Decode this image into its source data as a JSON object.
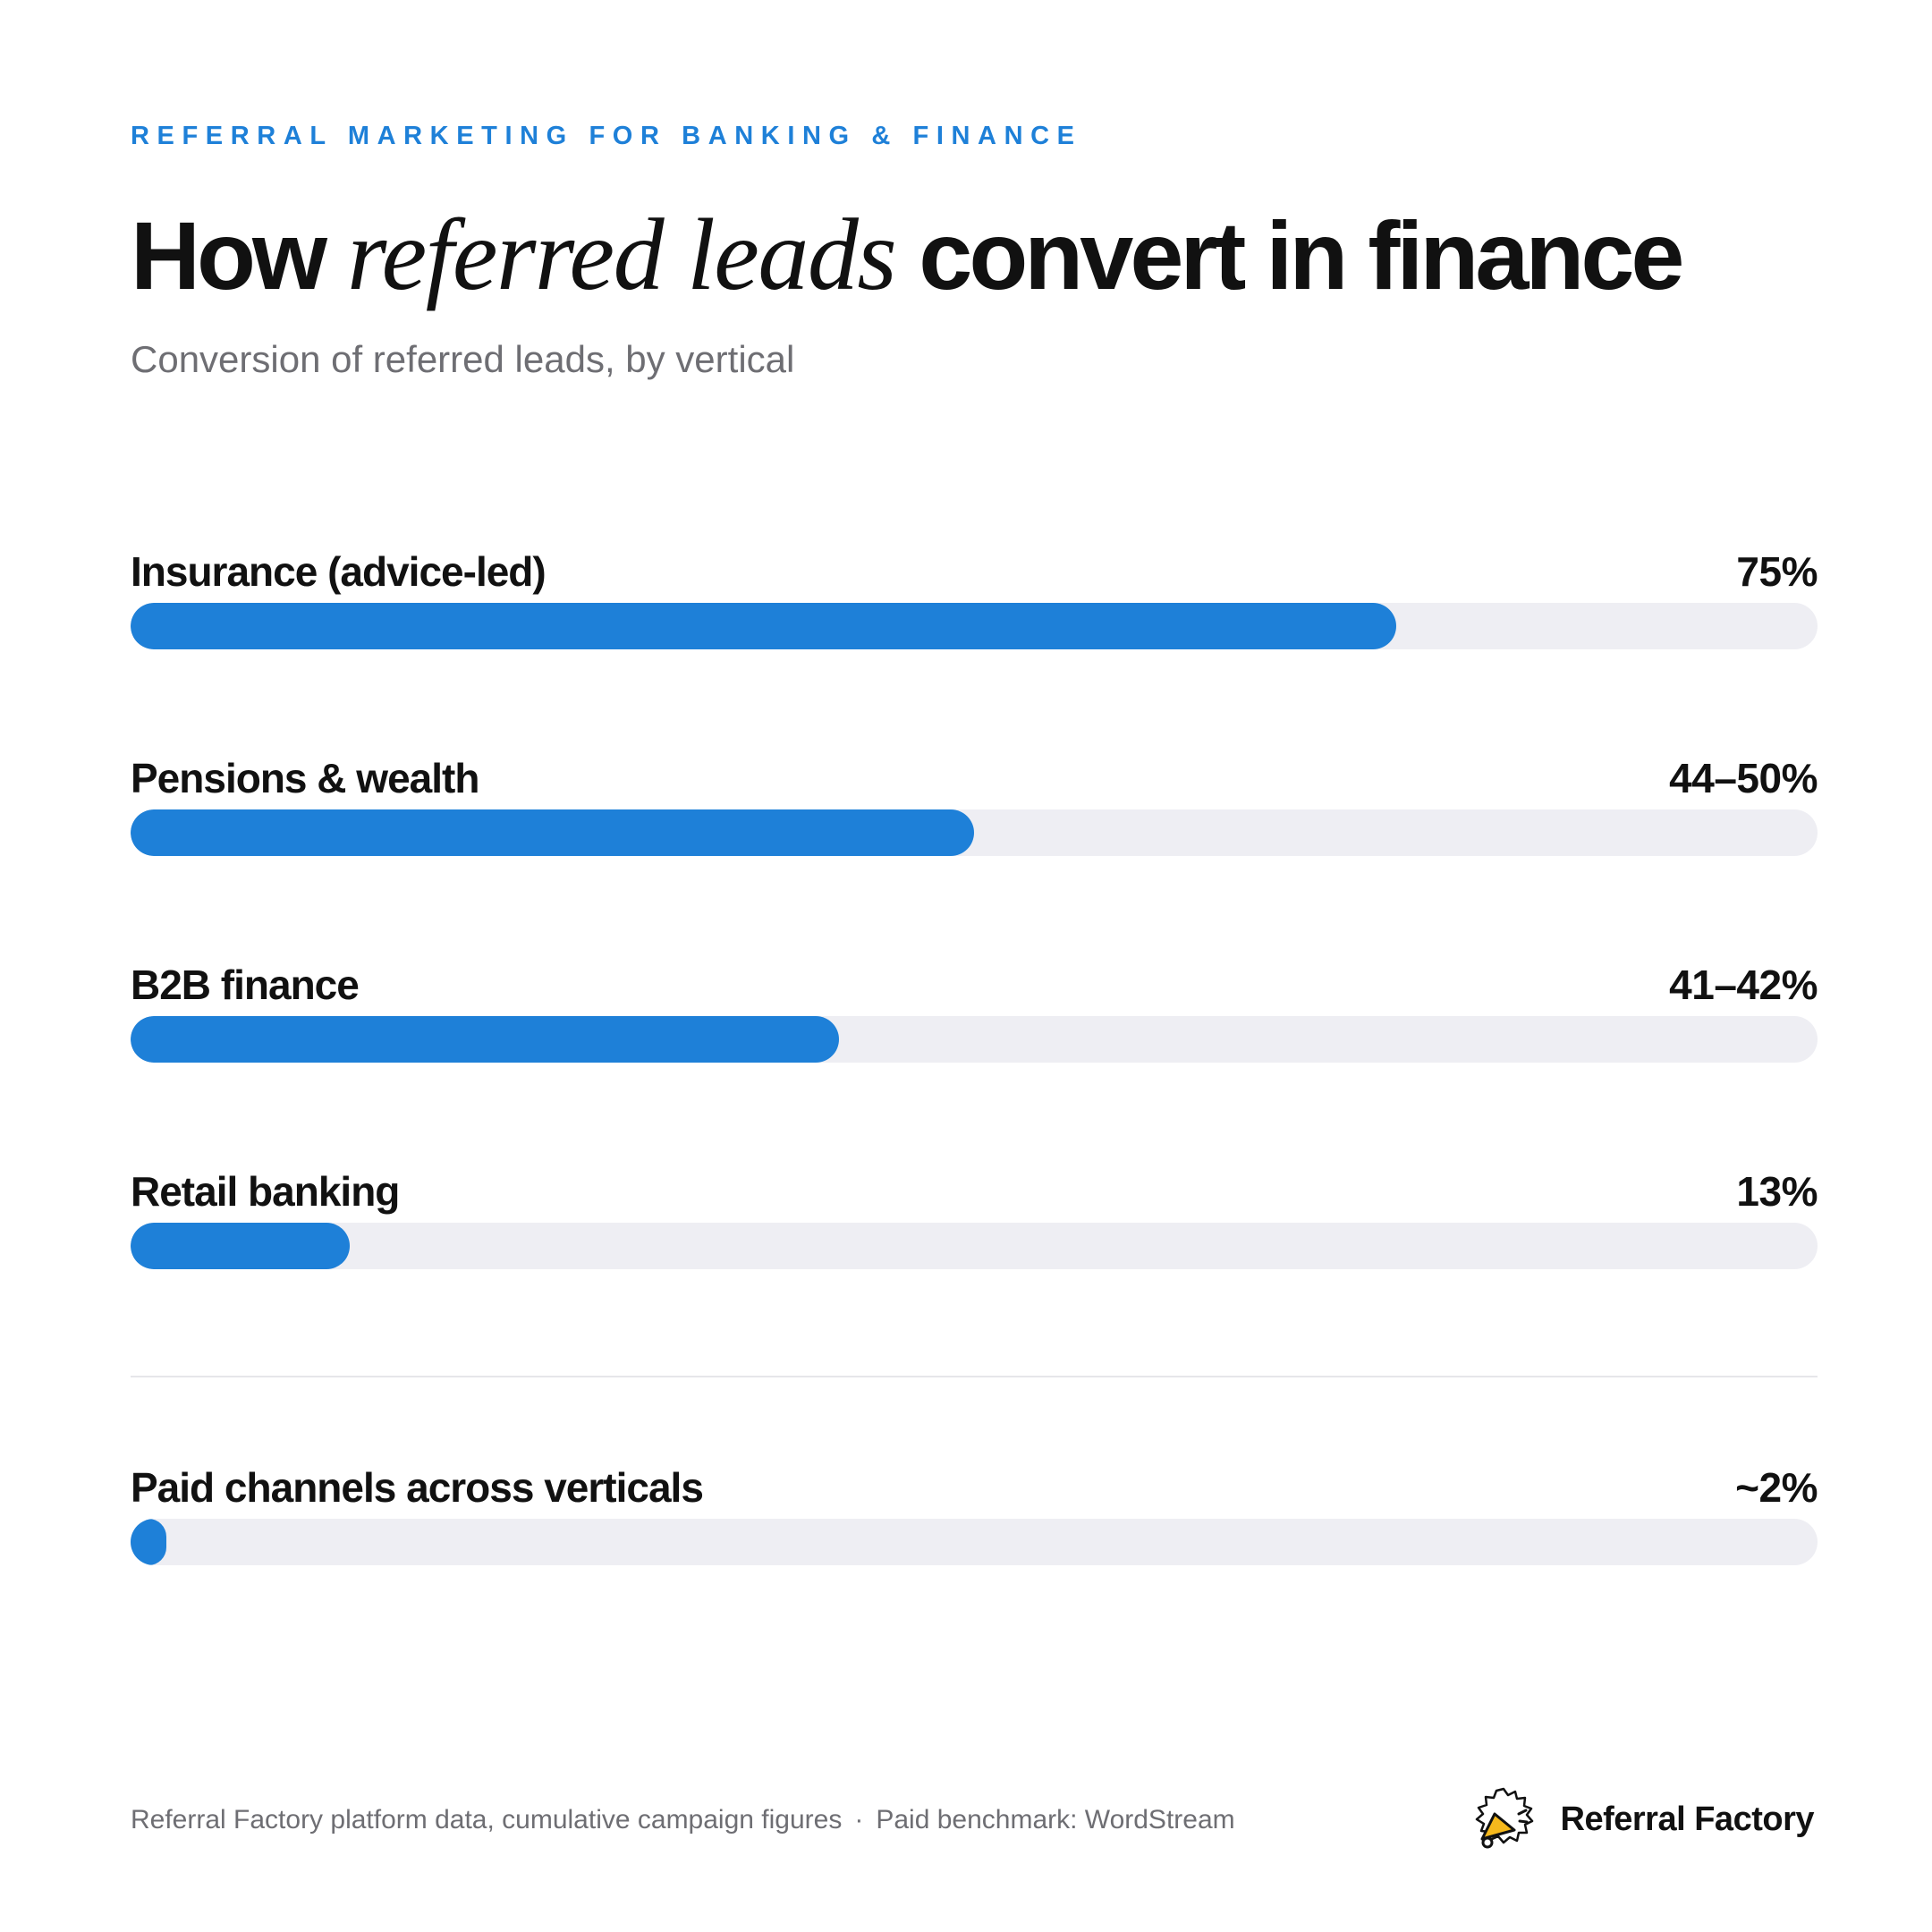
{
  "eyebrow": "REFERRAL MARKETING FOR BANKING & FINANCE",
  "title": {
    "part1": "How",
    "italic": "referred leads",
    "part2": "convert in finance"
  },
  "subtitle": "Conversion of referred leads, by vertical",
  "chart_data": {
    "type": "bar",
    "orientation": "horizontal",
    "categories": [
      "Insurance (advice-led)",
      "Pensions & wealth",
      "B2B finance",
      "Retail banking",
      "Paid channels across verticals"
    ],
    "value_labels": [
      "75%",
      "44–50%",
      "41–42%",
      "13%",
      "~2%"
    ],
    "values": [
      75,
      50,
      42,
      13,
      2
    ],
    "xlim": [
      0,
      100
    ],
    "bar_color": "#1e80d8",
    "track_color": "#eeeef3"
  },
  "footer": {
    "source": "Referral Factory platform data, cumulative campaign figures",
    "separator": "·",
    "benchmark": "Paid benchmark: WordStream",
    "brand": "Referral Factory",
    "brand_icon": "megaphone-icon"
  },
  "colors": {
    "accent": "#1e80d8",
    "text": "#111111",
    "muted": "#6e6e73",
    "logo_yellow": "#f5b81c"
  }
}
